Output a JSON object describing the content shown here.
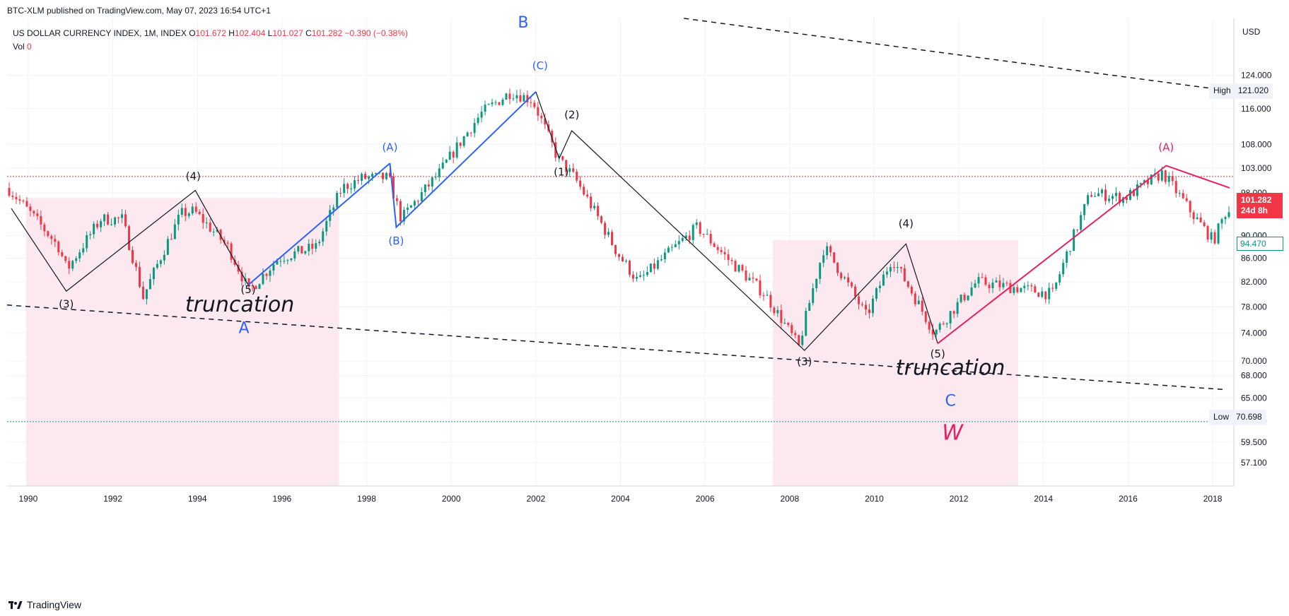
{
  "header": {
    "published": "BTC-XLM published on TradingView.com, May 07, 2023 16:54 UTC+1",
    "symbol": "US DOLLAR CURRENCY INDEX, 1M, INDEX",
    "o_label": "O",
    "o_value": "101.672",
    "h_label": "H",
    "h_value": "102.404",
    "l_label": "L",
    "l_value": "101.027",
    "c_label": "C",
    "c_value": "101.282",
    "change": "−0.390 (−0.38%)",
    "vol_label": "Vol",
    "vol_value": "0"
  },
  "brand": {
    "name": "TradingView"
  },
  "colors": {
    "up": "#089981",
    "down": "#f23645",
    "wave_blue": "#2962ff",
    "wave_pink": "#e91e63",
    "zone": "#fce4ec",
    "grid": "#f0f3fa"
  },
  "chart_data": {
    "type": "candlestick",
    "instrument": "US DOLLAR CURRENCY INDEX, 1M, INDEX",
    "x": {
      "range": [
        1989.5,
        2018.5
      ],
      "ticks": [
        "1990",
        "1992",
        "1994",
        "1996",
        "1998",
        "2000",
        "2002",
        "2004",
        "2006",
        "2008",
        "2010",
        "2012",
        "2014",
        "2016",
        "2018"
      ]
    },
    "y": {
      "unit": "USD",
      "scale": "log",
      "range": [
        54.5,
        139
      ],
      "ticks": [
        "124.000",
        "116.000",
        "108.000",
        "103.000",
        "98.000",
        "94.000",
        "90.000",
        "86.000",
        "82.000",
        "78.000",
        "74.000",
        "70.000",
        "68.000",
        "65.000",
        "62.000",
        "59.500",
        "57.100"
      ]
    },
    "series": [
      {
        "name": "US DOLLAR CURRENCY INDEX",
        "anchors": [
          [
            1989.6,
            99
          ],
          [
            1990.8,
            88
          ],
          [
            1991.0,
            84
          ],
          [
            1991.8,
            93
          ],
          [
            1992.3,
            93
          ],
          [
            1992.8,
            79.5
          ],
          [
            1993.7,
            94
          ],
          [
            1994.0,
            94.5
          ],
          [
            1994.8,
            88
          ],
          [
            1995.3,
            80.5
          ],
          [
            1996.0,
            86
          ],
          [
            1996.9,
            88
          ],
          [
            1997.5,
            99
          ],
          [
            1998.0,
            101
          ],
          [
            1998.6,
            101
          ],
          [
            1998.9,
            93
          ],
          [
            1999.8,
            102
          ],
          [
            2000.8,
            115
          ],
          [
            2001.5,
            120
          ],
          [
            2002.0,
            118
          ],
          [
            2002.6,
            105
          ],
          [
            2003.0,
            101
          ],
          [
            2004.0,
            87
          ],
          [
            2004.5,
            82
          ],
          [
            2005.9,
            91.5
          ],
          [
            2006.6,
            86
          ],
          [
            2007.5,
            80
          ],
          [
            2008.3,
            72
          ],
          [
            2008.9,
            88
          ],
          [
            2009.9,
            76.5
          ],
          [
            2010.5,
            86
          ],
          [
            2011.5,
            74
          ],
          [
            2012.5,
            82
          ],
          [
            2013.5,
            81
          ],
          [
            2014.3,
            80
          ],
          [
            2015.2,
            98
          ],
          [
            2016.0,
            97
          ],
          [
            2016.9,
            102
          ],
          [
            2017.6,
            94
          ],
          [
            2018.1,
            89
          ],
          [
            2018.4,
            94.5
          ]
        ]
      }
    ],
    "last_price": "101.282",
    "last_price_countdown": "24d 8h",
    "green_tag_price": "94.470",
    "high": {
      "label": "High",
      "value": "121.020"
    },
    "low": {
      "label": "Low",
      "value": "70.698"
    },
    "price_lines": [
      {
        "price": 101.282,
        "color": "#f23645",
        "style": "dotted"
      },
      {
        "price": 62,
        "color": "#089981",
        "style": "dotted"
      }
    ],
    "zones": [
      {
        "x": [
          1989.95,
          1997.35
        ],
        "y": [
          54.5,
          97
        ]
      },
      {
        "x": [
          2007.6,
          2013.4
        ],
        "y": [
          54.5,
          89.2
        ]
      }
    ],
    "trendlines": [
      {
        "points": [
          [
            1989.5,
            78.3
          ],
          [
            2018.3,
            66.1
          ]
        ],
        "style": "dashed"
      },
      {
        "points": [
          [
            2005.5,
            139
          ],
          [
            2018.2,
            120.5
          ]
        ],
        "style": "dashed"
      }
    ],
    "wave_paths": [
      {
        "color": "black",
        "points": [
          [
            1989.6,
            95
          ],
          [
            1990.9,
            80.5
          ],
          [
            1993.95,
            98.5
          ],
          [
            1995.2,
            81.5
          ]
        ]
      },
      {
        "color": "blue",
        "points": [
          [
            1995.2,
            81.5
          ],
          [
            1998.55,
            104
          ]
        ]
      },
      {
        "color": "blue",
        "points": [
          [
            1998.55,
            104
          ],
          [
            1998.7,
            91.5
          ],
          [
            2002.0,
            120
          ]
        ]
      },
      {
        "color": "black",
        "points": [
          [
            2002.0,
            120
          ],
          [
            2002.55,
            105
          ],
          [
            2002.85,
            111
          ],
          [
            2008.35,
            71.5
          ],
          [
            2010.75,
            88.5
          ],
          [
            2011.5,
            72.5
          ]
        ]
      },
      {
        "color": "pink",
        "points": [
          [
            2011.5,
            72.5
          ],
          [
            2016.9,
            103.5
          ],
          [
            2018.4,
            99
          ]
        ]
      }
    ],
    "annotations": [
      {
        "text": "(3)",
        "x": 1990.9,
        "y": 77.9,
        "color": "black"
      },
      {
        "text": "(4)",
        "x": 1993.9,
        "y": 100.6,
        "color": "black"
      },
      {
        "text": "(5)",
        "x": 1995.2,
        "y": 80.2,
        "color": "black"
      },
      {
        "text": "truncation",
        "x": 1995.0,
        "y": 77.3,
        "color": "black"
      },
      {
        "text": "A",
        "x": 1995.1,
        "y": 74.0,
        "color": "blue"
      },
      {
        "text": "(A)",
        "x": 1998.55,
        "y": 106.6,
        "color": "blue"
      },
      {
        "text": "(B)",
        "x": 1998.7,
        "y": 88.4,
        "color": "blue"
      },
      {
        "text": "(C)",
        "x": 2002.1,
        "y": 125.5,
        "color": "blue"
      },
      {
        "text": "B",
        "x": 2001.7,
        "y": 136.5,
        "color": "blue"
      },
      {
        "text": "(2)",
        "x": 2002.85,
        "y": 113.8,
        "color": "black"
      },
      {
        "text": "(1)",
        "x": 2002.6,
        "y": 101.5,
        "color": "black"
      },
      {
        "text": "(3)",
        "x": 2008.35,
        "y": 69.4,
        "color": "black"
      },
      {
        "text": "(4)",
        "x": 2010.75,
        "y": 91.5,
        "color": "black"
      },
      {
        "text": "(5)",
        "x": 2011.5,
        "y": 70.5,
        "color": "black"
      },
      {
        "text": "truncation",
        "x": 2011.8,
        "y": 68.1,
        "color": "black"
      },
      {
        "text": "C",
        "x": 2011.8,
        "y": 64.0,
        "color": "blue"
      },
      {
        "text": "W",
        "x": 2011.85,
        "y": 59.8,
        "color": "pink"
      },
      {
        "text": "(A)",
        "x": 2016.9,
        "y": 106.6,
        "color": "pink"
      }
    ]
  }
}
